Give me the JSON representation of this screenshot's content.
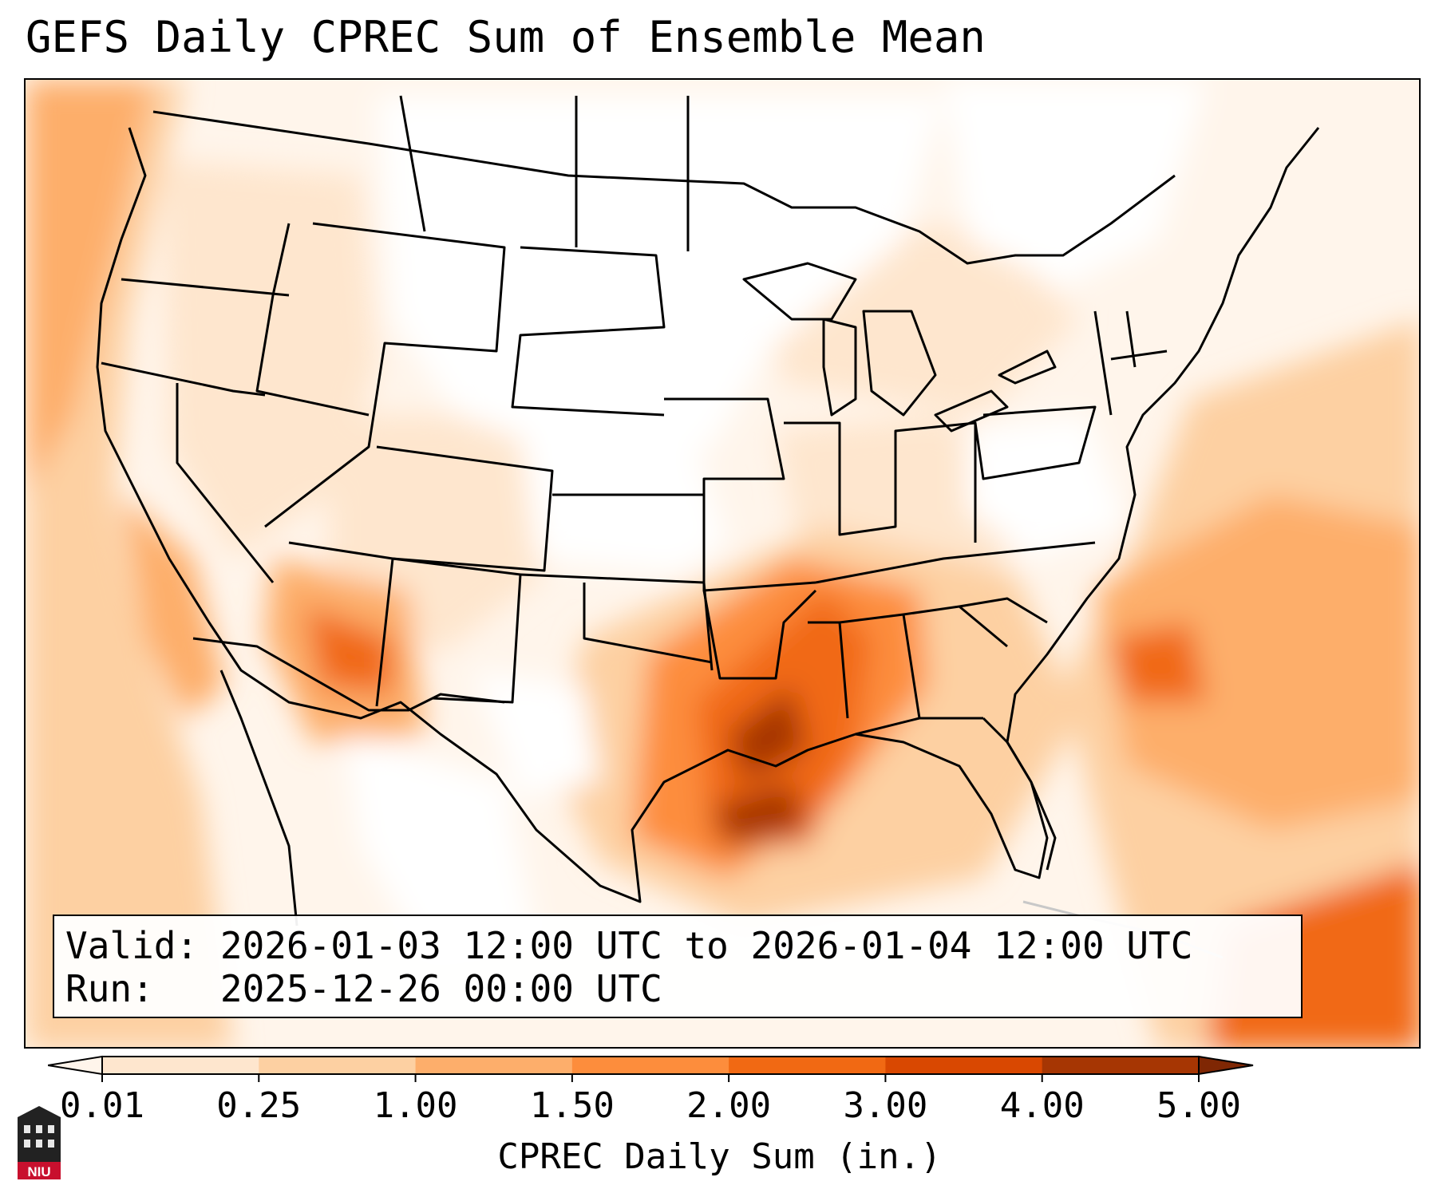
{
  "title": "GEFS Daily CPREC Sum of Ensemble Mean",
  "info": {
    "valid_label": "Valid:",
    "valid_value": "2026-01-03 12:00 UTC to 2026-01-04 12:00 UTC",
    "run_label": "Run:",
    "run_value": "2025-12-26 00:00 UTC"
  },
  "logo": {
    "text": "NIU"
  },
  "colorbar": {
    "label": "CPREC Daily Sum (in.)",
    "ticks": [
      "0.01",
      "0.25",
      "1.00",
      "1.50",
      "2.00",
      "3.00",
      "4.00",
      "5.00"
    ],
    "colors": [
      "#fff5eb",
      "#fee6ce",
      "#fdd0a2",
      "#fdae6b",
      "#fd8d3c",
      "#f16913",
      "#d94801",
      "#a63603",
      "#7f2704"
    ],
    "extend": "both"
  },
  "map": {
    "region": "CONUS",
    "projection": "Lambert Conformal",
    "color_scale": [
      "#ffffff",
      "#fff5eb",
      "#fee6ce",
      "#fdd0a2",
      "#fdae6b",
      "#fd8d3c",
      "#f16913",
      "#d94801",
      "#a63603"
    ]
  }
}
